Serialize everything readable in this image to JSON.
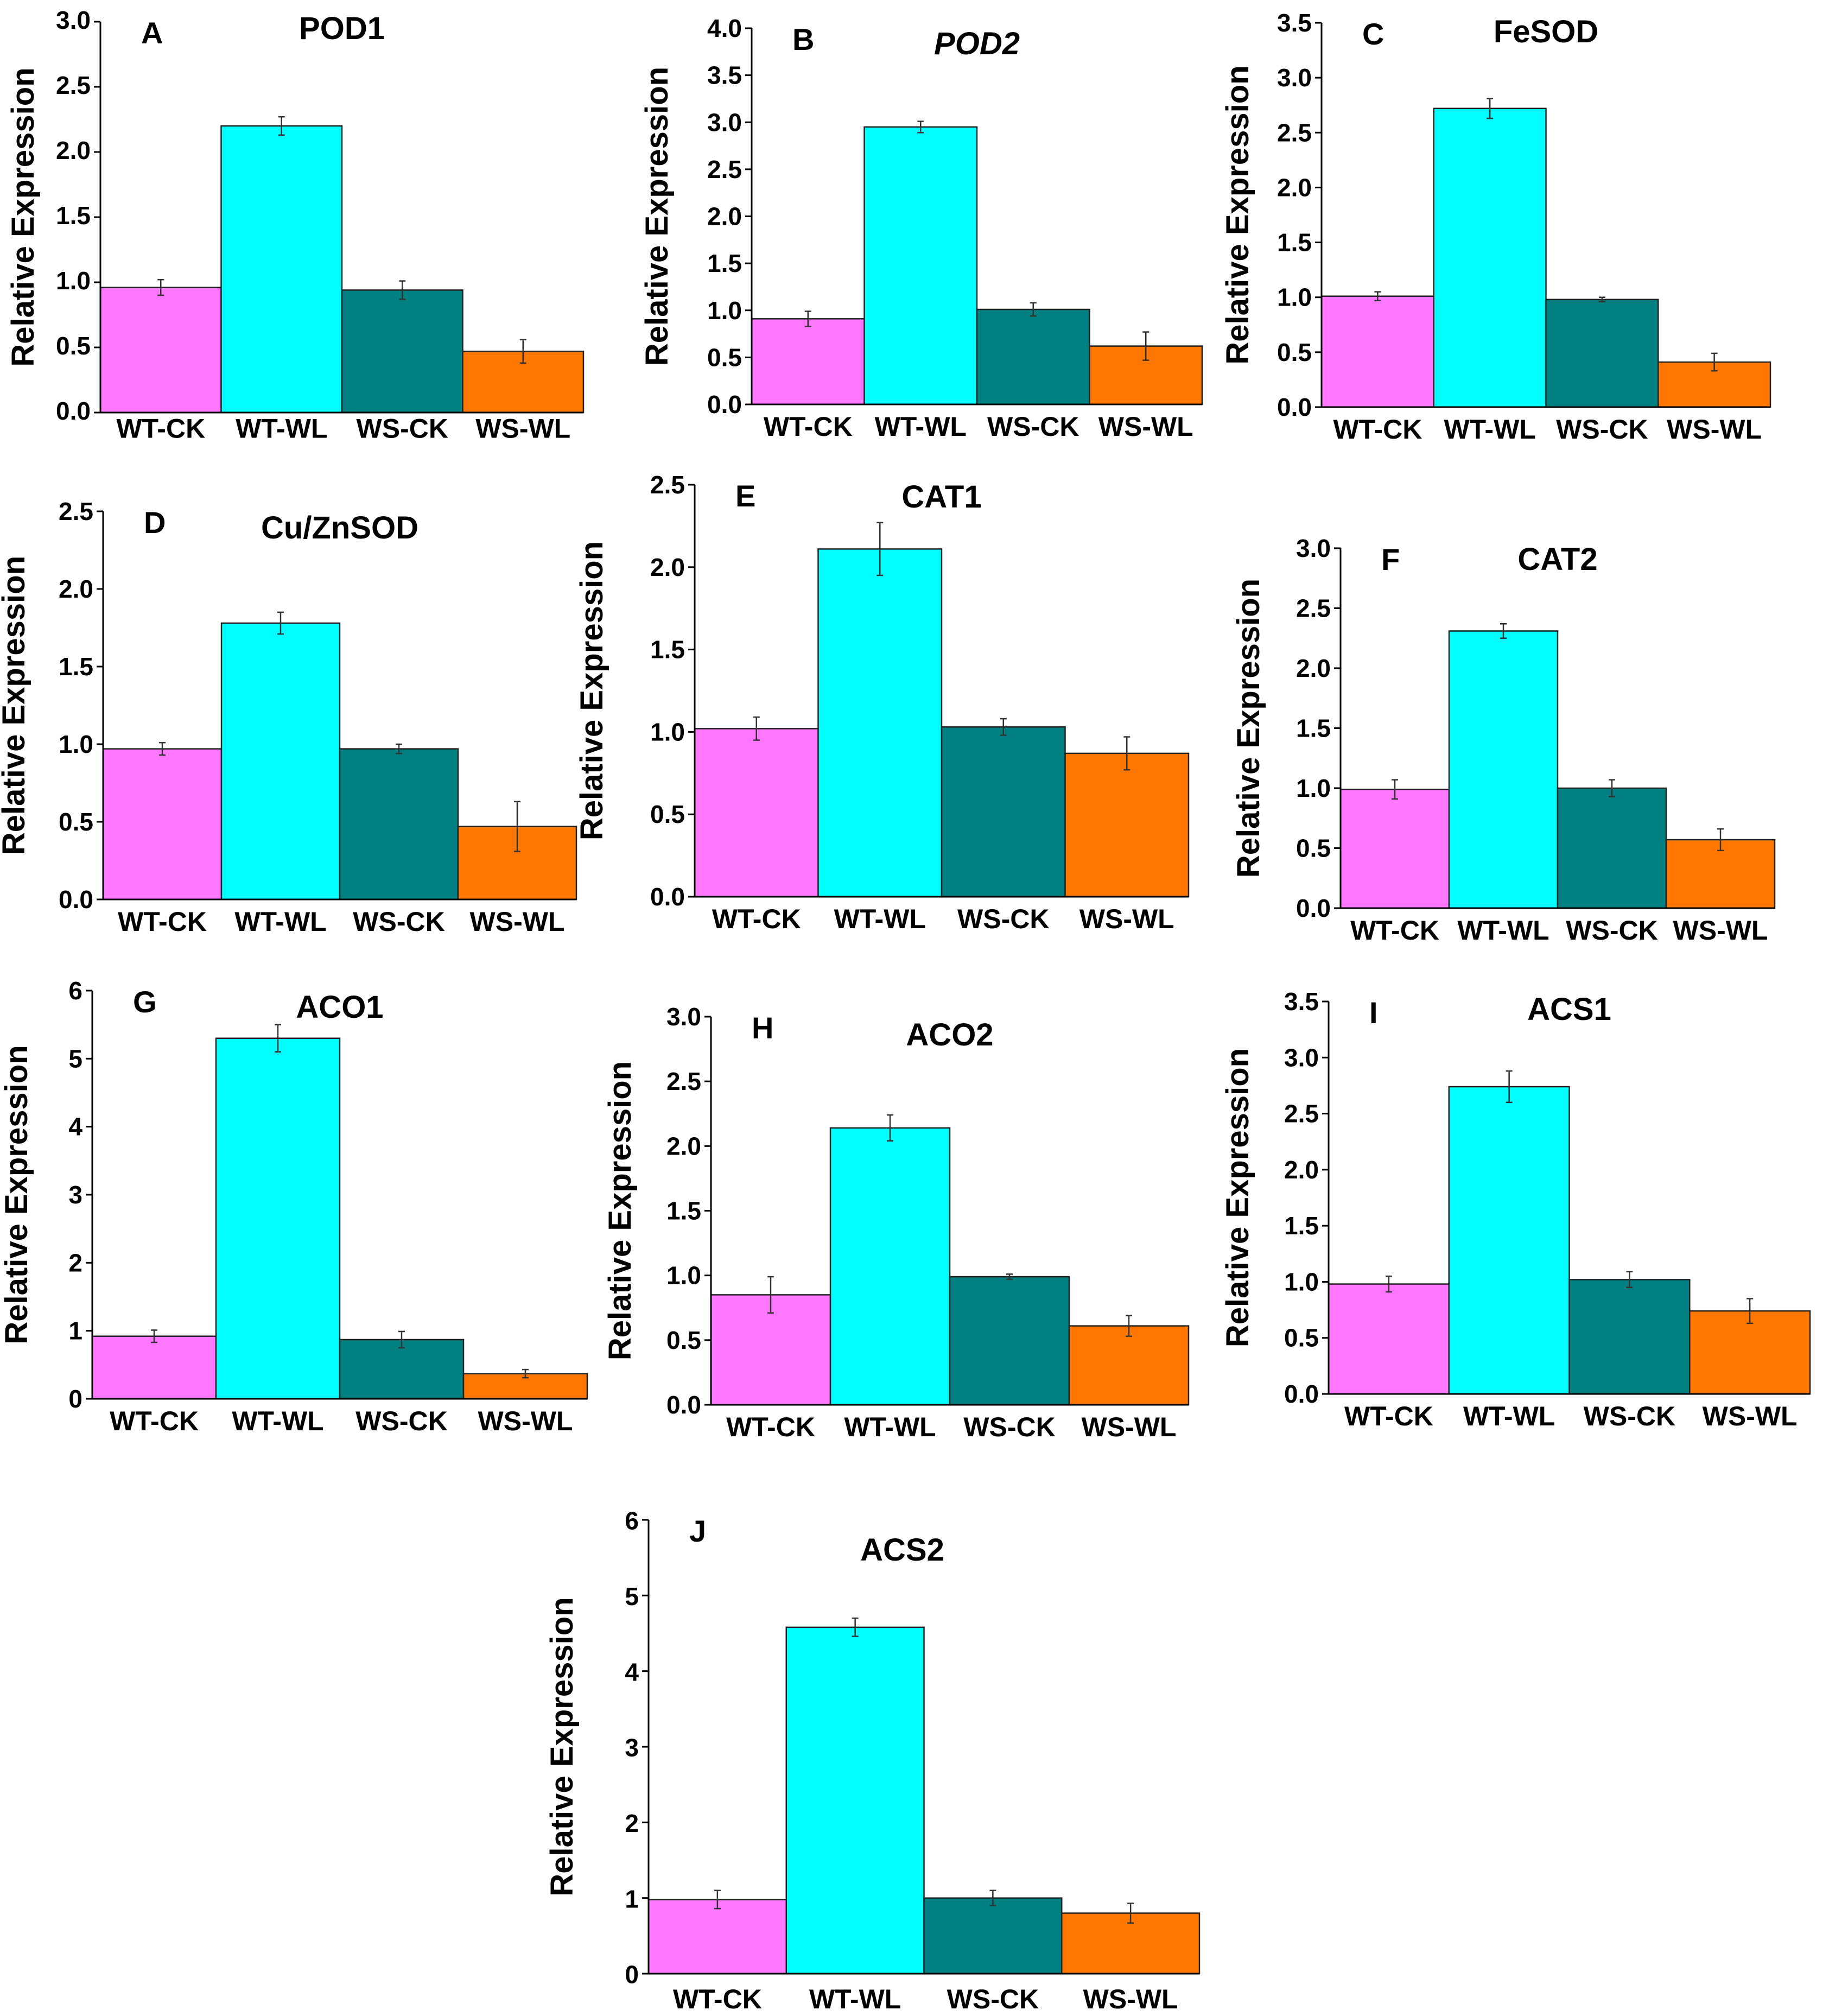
{
  "figure": {
    "categories": [
      "WT-CK",
      "WT-WL",
      "WS-CK",
      "WS-WL"
    ],
    "y_axis_label": "Relative Expression",
    "bar_colors": [
      "#ff77ff",
      "#00ffff",
      "#008080",
      "#ff7700"
    ]
  },
  "chart_data": [
    {
      "type": "bar",
      "panel": "A",
      "title": "POD1",
      "title_italic": false,
      "ylim": [
        0,
        3.0
      ],
      "ticks": [
        "0.0",
        "0.5",
        "1.0",
        "1.5",
        "2.0",
        "2.5",
        "3.0"
      ],
      "categories": [
        "WT-CK",
        "WT-WL",
        "WS-CK",
        "WS-WL"
      ],
      "values": [
        0.96,
        2.2,
        0.94,
        0.47
      ],
      "errors": [
        0.06,
        0.07,
        0.07,
        0.09
      ],
      "ylabel": "Relative Expression",
      "xlabel": ""
    },
    {
      "type": "bar",
      "panel": "B",
      "title": "POD2",
      "title_italic": true,
      "ylim": [
        0,
        4.0
      ],
      "ticks": [
        "0.0",
        "0.5",
        "1.0",
        "1.5",
        "2.0",
        "2.5",
        "3.0",
        "3.5",
        "4.0"
      ],
      "categories": [
        "WT-CK",
        "WT-WL",
        "WS-CK",
        "WS-WL"
      ],
      "values": [
        0.91,
        2.95,
        1.01,
        0.62
      ],
      "errors": [
        0.08,
        0.06,
        0.07,
        0.15
      ],
      "ylabel": "Relative Expression",
      "xlabel": ""
    },
    {
      "type": "bar",
      "panel": "C",
      "title": "FeSOD",
      "title_italic": false,
      "ylim": [
        0,
        3.5
      ],
      "ticks": [
        "0.0",
        "0.5",
        "1.0",
        "1.5",
        "2.0",
        "2.5",
        "3.0",
        "3.5"
      ],
      "categories": [
        "WT-CK",
        "WT-WL",
        "WS-CK",
        "WS-WL"
      ],
      "values": [
        1.01,
        2.72,
        0.98,
        0.41
      ],
      "errors": [
        0.04,
        0.09,
        0.02,
        0.08
      ],
      "ylabel": "Relative Expression",
      "xlabel": ""
    },
    {
      "type": "bar",
      "panel": "D",
      "title": "Cu/ZnSOD",
      "title_italic": false,
      "ylim": [
        0,
        2.5
      ],
      "ticks": [
        "0.0",
        "0.5",
        "1.0",
        "1.5",
        "2.0",
        "2.5"
      ],
      "categories": [
        "WT-CK",
        "WT-WL",
        "WS-CK",
        "WS-WL"
      ],
      "values": [
        0.97,
        1.78,
        0.97,
        0.47
      ],
      "errors": [
        0.04,
        0.07,
        0.03,
        0.16
      ],
      "ylabel": "Relative Expression",
      "xlabel": ""
    },
    {
      "type": "bar",
      "panel": "E",
      "title": "CAT1",
      "title_italic": false,
      "ylim": [
        0,
        2.5
      ],
      "ticks": [
        "0.0",
        "0.5",
        "1.0",
        "1.5",
        "2.0",
        "2.5"
      ],
      "categories": [
        "WT-CK",
        "WT-WL",
        "WS-CK",
        "WS-WL"
      ],
      "values": [
        1.02,
        2.11,
        1.03,
        0.87
      ],
      "errors": [
        0.07,
        0.16,
        0.05,
        0.1
      ],
      "ylabel": "Relative Expression",
      "xlabel": ""
    },
    {
      "type": "bar",
      "panel": "F",
      "title": "CAT2",
      "title_italic": false,
      "ylim": [
        0,
        3.0
      ],
      "ticks": [
        "0.0",
        "0.5",
        "1.0",
        "1.5",
        "2.0",
        "2.5",
        "3.0"
      ],
      "categories": [
        "WT-CK",
        "WT-WL",
        "WS-CK",
        "WS-WL"
      ],
      "values": [
        0.99,
        2.31,
        1.0,
        0.57
      ],
      "errors": [
        0.08,
        0.06,
        0.07,
        0.09
      ],
      "ylabel": "Relative Expression",
      "xlabel": ""
    },
    {
      "type": "bar",
      "panel": "G",
      "title": "ACO1",
      "title_italic": false,
      "ylim": [
        0,
        6
      ],
      "ticks": [
        "0",
        "1",
        "2",
        "3",
        "4",
        "5",
        "6"
      ],
      "categories": [
        "WT-CK",
        "WT-WL",
        "WS-CK",
        "WS-WL"
      ],
      "values": [
        0.92,
        5.3,
        0.87,
        0.37
      ],
      "errors": [
        0.09,
        0.2,
        0.12,
        0.06
      ],
      "ylabel": "Relative Expression",
      "xlabel": ""
    },
    {
      "type": "bar",
      "panel": "H",
      "title": "ACO2",
      "title_italic": false,
      "ylim": [
        0,
        3.0
      ],
      "ticks": [
        "0.0",
        "0.5",
        "1.0",
        "1.5",
        "2.0",
        "2.5",
        "3.0"
      ],
      "categories": [
        "WT-CK",
        "WT-WL",
        "WS-CK",
        "WS-WL"
      ],
      "values": [
        0.85,
        2.14,
        0.99,
        0.61
      ],
      "errors": [
        0.14,
        0.1,
        0.02,
        0.08
      ],
      "ylabel": "Relative Expression",
      "xlabel": ""
    },
    {
      "type": "bar",
      "panel": "I",
      "title": "ACS1",
      "title_italic": false,
      "ylim": [
        0,
        3.5
      ],
      "ticks": [
        "0.0",
        "0.5",
        "1.0",
        "1.5",
        "2.0",
        "2.5",
        "3.0",
        "3.5"
      ],
      "categories": [
        "WT-CK",
        "WT-WL",
        "WS-CK",
        "WS-WL"
      ],
      "values": [
        0.98,
        2.74,
        1.02,
        0.74
      ],
      "errors": [
        0.07,
        0.14,
        0.07,
        0.11
      ],
      "ylabel": "Relative Expression",
      "xlabel": ""
    },
    {
      "type": "bar",
      "panel": "J",
      "title": "ACS2",
      "title_italic": false,
      "ylim": [
        0,
        6
      ],
      "ticks": [
        "0",
        "1",
        "2",
        "3",
        "4",
        "5",
        "6"
      ],
      "categories": [
        "WT-CK",
        "WT-WL",
        "WS-CK",
        "WS-WL"
      ],
      "values": [
        0.98,
        4.58,
        1.0,
        0.8
      ],
      "errors": [
        0.12,
        0.12,
        0.1,
        0.13
      ],
      "ylabel": "Relative Expression",
      "xlabel": ""
    }
  ]
}
